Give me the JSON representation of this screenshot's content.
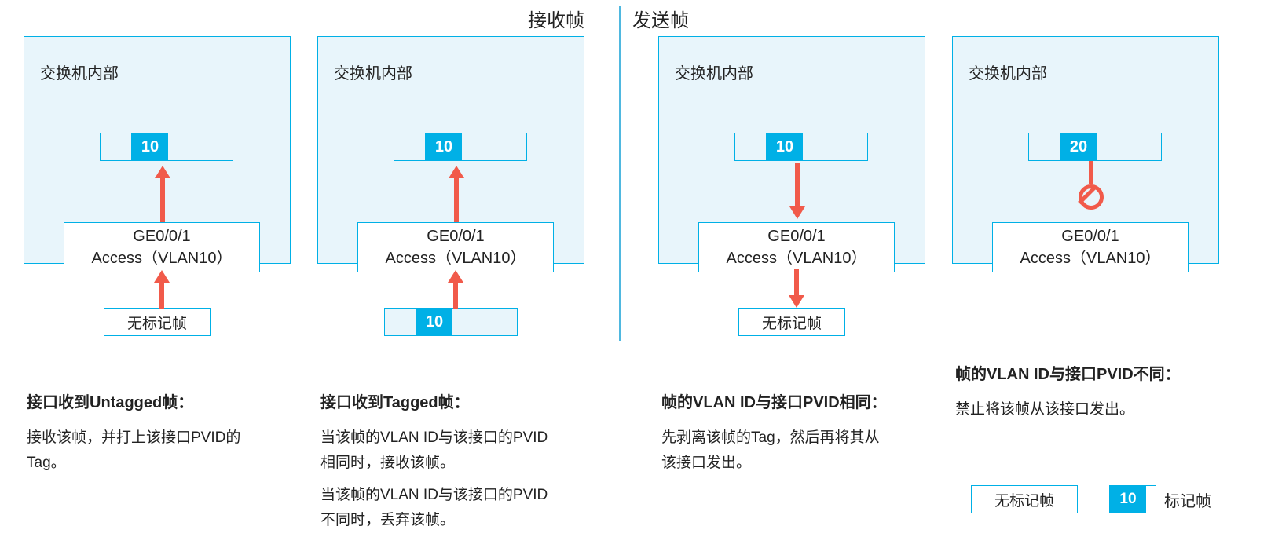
{
  "colors": {
    "bg_light": "#e8f5fb",
    "border_blue": "#00b0e6",
    "tag_blue": "#00b0e6",
    "arrow_red": "#f15a4a",
    "divider": "#4fb8e0",
    "text": "#222222"
  },
  "header": {
    "receive": "接收帧",
    "send": "发送帧"
  },
  "panels": [
    {
      "switch_label": "交换机内部",
      "top_frame_tag": "10",
      "port_line1": "GE0/0/1",
      "port_line2": "Access（VLAN10）",
      "bottom_frame_type": "untagged",
      "bottom_frame_label": "无标记帧",
      "bottom_frame_tag": "",
      "arrows_dir": "up",
      "blocked": false,
      "desc_title": "接口收到Untagged帧：",
      "desc_p1": "接收该帧，并打上该接口PVID的Tag。",
      "desc_p2": ""
    },
    {
      "switch_label": "交换机内部",
      "top_frame_tag": "10",
      "port_line1": "GE0/0/1",
      "port_line2": "Access（VLAN10）",
      "bottom_frame_type": "tagged",
      "bottom_frame_label": "",
      "bottom_frame_tag": "10",
      "arrows_dir": "up",
      "blocked": false,
      "desc_title": "接口收到Tagged帧：",
      "desc_p1": "当该帧的VLAN ID与该接口的PVID相同时，接收该帧。",
      "desc_p2": "当该帧的VLAN ID与该接口的PVID不同时，丢弃该帧。"
    },
    {
      "switch_label": "交换机内部",
      "top_frame_tag": "10",
      "port_line1": "GE0/0/1",
      "port_line2": "Access（VLAN10）",
      "bottom_frame_type": "untagged",
      "bottom_frame_label": "无标记帧",
      "bottom_frame_tag": "",
      "arrows_dir": "down",
      "blocked": false,
      "desc_title": "帧的VLAN ID与接口PVID相同：",
      "desc_p1": "先剥离该帧的Tag，然后再将其从该接口发出。",
      "desc_p2": ""
    },
    {
      "switch_label": "交换机内部",
      "top_frame_tag": "20",
      "port_line1": "GE0/0/1",
      "port_line2": "Access（VLAN10）",
      "bottom_frame_type": "none",
      "bottom_frame_label": "",
      "bottom_frame_tag": "",
      "arrows_dir": "blocked",
      "blocked": true,
      "desc_title": "帧的VLAN ID与接口PVID不同：",
      "desc_p1": "禁止将该帧从该接口发出。",
      "desc_p2": ""
    }
  ],
  "legend": {
    "untagged_label": "无标记帧",
    "tagged_tag": "10",
    "tagged_label": "标记帧"
  }
}
